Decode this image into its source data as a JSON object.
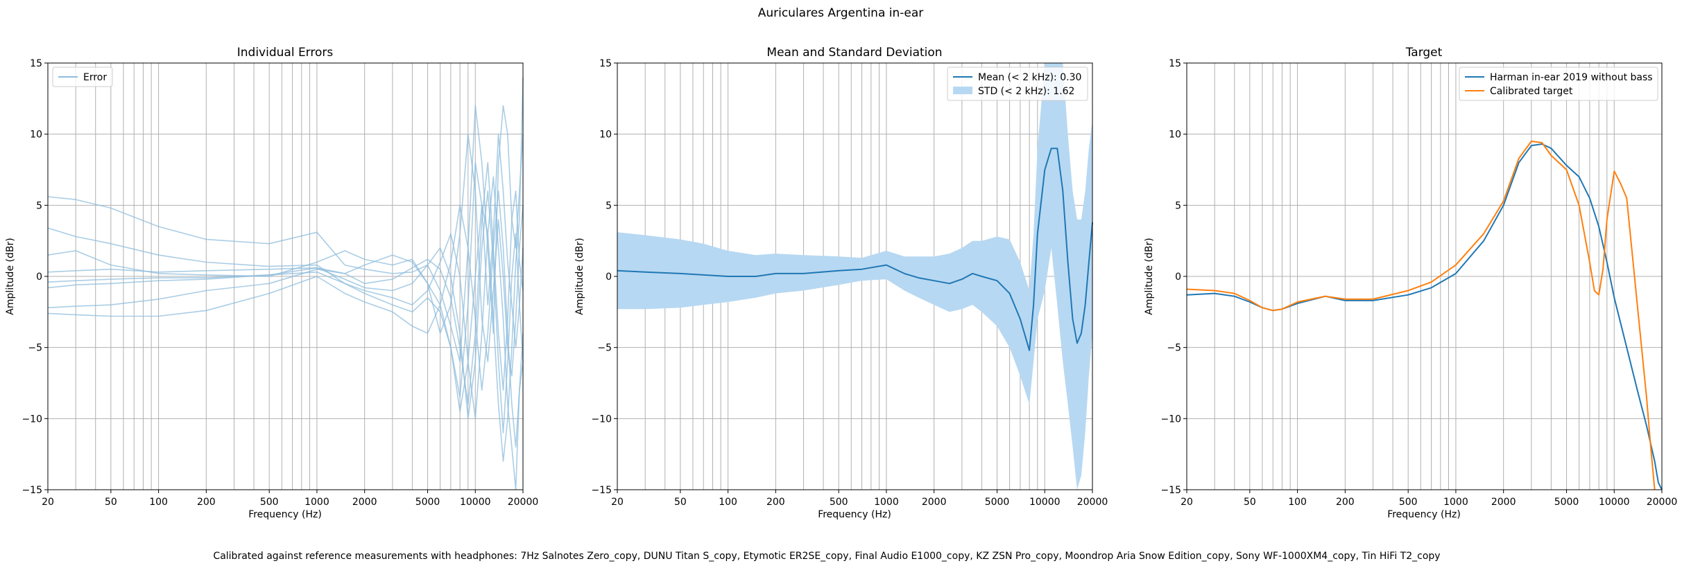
{
  "figure": {
    "suptitle": "Auriculares Argentina in-ear",
    "footer": "Calibrated against reference measurements with headphones: 7Hz Salnotes Zero_copy, DUNU Titan S_copy, Etymotic ER2SE_copy, Final Audio E1000_copy, KZ ZSN Pro_copy, Moondrop Aria Snow Edition_copy, Sony WF-1000XM4_copy, Tin HiFi T2_copy"
  },
  "chart_data": [
    {
      "type": "line",
      "title": "Individual Errors",
      "xlabel": "Frequency (Hz)",
      "ylabel": "Amplitude (dBr)",
      "xscale": "log",
      "xlim": [
        20,
        20000
      ],
      "ylim": [
        -15,
        15
      ],
      "xticks": [
        20,
        50,
        100,
        200,
        500,
        1000,
        2000,
        5000,
        10000,
        20000
      ],
      "yticks": [
        -15,
        -10,
        -5,
        0,
        5,
        10,
        15
      ],
      "grid": true,
      "legend": {
        "placement": "top-left",
        "entries": [
          "Error"
        ]
      },
      "line_color": "#8ebcdc",
      "series": [
        {
          "x": [
            20,
            30,
            50,
            100,
            200,
            500,
            1000,
            1500,
            2000,
            3000,
            4000,
            5000,
            6000,
            7000,
            8000,
            9000,
            10000,
            11000,
            12000,
            13000,
            14000,
            15000,
            16000,
            17000,
            18000,
            19000,
            20000
          ],
          "y": [
            5.6,
            5.4,
            4.8,
            3.5,
            2.6,
            2.3,
            3.1,
            0.8,
            0.5,
            0.2,
            0.3,
            0.8,
            -1.0,
            -3.5,
            -6.0,
            2.0,
            12.0,
            8.0,
            2.0,
            -4.0,
            8.0,
            12.0,
            10.0,
            4.0,
            2.0,
            6.0,
            10.0
          ]
        },
        {
          "x": [
            20,
            30,
            50,
            100,
            200,
            500,
            1000,
            1500,
            2000,
            3000,
            4000,
            5000,
            6000,
            7000,
            8000,
            9000,
            10000,
            11000,
            12000,
            13000,
            14000,
            15000,
            16000,
            17000,
            18000,
            19000,
            20000
          ],
          "y": [
            3.4,
            2.8,
            2.3,
            1.5,
            1.0,
            0.7,
            0.8,
            -0.5,
            -1.2,
            -2.0,
            -2.5,
            -1.5,
            -2.5,
            -5.0,
            -8.5,
            -2.0,
            8.0,
            5.0,
            -2.0,
            3.0,
            10.0,
            6.0,
            1.0,
            -2.0,
            -5.0,
            -2.0,
            2.0
          ]
        },
        {
          "x": [
            20,
            30,
            50,
            100,
            200,
            500,
            1000,
            1500,
            2000,
            3000,
            4000,
            5000,
            6000,
            7000,
            8000,
            9000,
            10000,
            11000,
            12000,
            13000,
            14000,
            15000,
            16000,
            17000,
            18000,
            19000,
            20000
          ],
          "y": [
            1.5,
            1.8,
            0.8,
            0.2,
            0.1,
            0.0,
            1.0,
            1.8,
            1.2,
            0.8,
            1.2,
            -0.5,
            -4.0,
            -2.0,
            3.0,
            10.0,
            6.0,
            -3.0,
            -6.0,
            -1.0,
            4.0,
            0.0,
            -5.0,
            -7.0,
            -3.0,
            2.0,
            5.0
          ]
        },
        {
          "x": [
            20,
            30,
            50,
            100,
            200,
            500,
            1000,
            1500,
            2000,
            3000,
            4000,
            5000,
            6000,
            7000,
            8000,
            9000,
            10000,
            11000,
            12000,
            13000,
            14000,
            15000,
            16000,
            17000,
            18000,
            19000,
            20000
          ],
          "y": [
            0.3,
            0.4,
            0.5,
            0.3,
            0.4,
            0.5,
            0.6,
            0.2,
            -0.5,
            -0.2,
            0.6,
            1.2,
            0.5,
            -1.5,
            -5.0,
            -9.0,
            -4.0,
            4.0,
            8.0,
            2.0,
            -4.0,
            -8.0,
            -3.0,
            4.0,
            6.0,
            1.0,
            -1.0
          ]
        },
        {
          "x": [
            20,
            30,
            50,
            100,
            200,
            500,
            1000,
            1500,
            2000,
            3000,
            4000,
            5000,
            6000,
            7000,
            8000,
            9000,
            10000,
            11000,
            12000,
            13000,
            14000,
            15000,
            16000,
            17000,
            18000,
            19000,
            20000
          ],
          "y": [
            -0.4,
            -0.3,
            -0.2,
            -0.1,
            -0.1,
            0.1,
            0.3,
            -0.5,
            -1.0,
            -1.5,
            -2.0,
            -1.0,
            1.0,
            3.0,
            0.0,
            -6.0,
            -10.0,
            -4.0,
            3.0,
            7.0,
            2.0,
            -3.0,
            -9.0,
            -12.0,
            -15.0,
            -8.0,
            -4.0
          ]
        },
        {
          "x": [
            20,
            30,
            50,
            100,
            200,
            500,
            1000,
            1500,
            2000,
            3000,
            4000,
            5000,
            6000,
            7000,
            8000,
            9000,
            10000,
            11000,
            12000,
            13000,
            14000,
            15000,
            16000,
            17000,
            18000,
            19000,
            20000
          ],
          "y": [
            -0.8,
            -0.6,
            -0.5,
            -0.3,
            -0.2,
            0.1,
            0.6,
            -0.2,
            -0.8,
            -1.0,
            -0.5,
            0.8,
            2.0,
            0.0,
            -4.0,
            -10.0,
            -6.0,
            2.0,
            6.0,
            1.0,
            -6.0,
            -11.0,
            -6.0,
            0.0,
            3.0,
            -2.0,
            -6.0
          ]
        },
        {
          "x": [
            20,
            30,
            50,
            100,
            200,
            500,
            1000,
            1500,
            2000,
            3000,
            4000,
            5000,
            6000,
            7000,
            8000,
            9000,
            10000,
            11000,
            12000,
            13000,
            14000,
            15000,
            16000,
            17000,
            18000,
            19000,
            20000
          ],
          "y": [
            -2.2,
            -2.1,
            -2.0,
            -1.6,
            -1.0,
            -0.5,
            0.5,
            0.2,
            0.8,
            1.5,
            1.0,
            -0.5,
            -2.0,
            -5.0,
            -9.5,
            -6.0,
            0.0,
            5.0,
            3.0,
            -3.0,
            -9.0,
            -13.0,
            -10.0,
            -5.0,
            1.0,
            4.0,
            14.0
          ]
        },
        {
          "x": [
            20,
            30,
            50,
            100,
            200,
            500,
            1000,
            1500,
            2000,
            3000,
            4000,
            5000,
            6000,
            7000,
            8000,
            9000,
            10000,
            11000,
            12000,
            13000,
            14000,
            15000,
            16000,
            17000,
            18000,
            19000,
            20000
          ],
          "y": [
            -2.6,
            -2.7,
            -2.8,
            -2.8,
            -2.4,
            -1.2,
            0.0,
            -1.2,
            -1.8,
            -2.5,
            -3.5,
            -4.0,
            -2.0,
            1.0,
            5.0,
            2.0,
            -3.0,
            -8.0,
            -4.0,
            2.0,
            6.0,
            2.0,
            -4.0,
            -9.0,
            -12.0,
            -8.0,
            -6.0
          ]
        }
      ]
    },
    {
      "type": "line",
      "title": "Mean and Standard Deviation",
      "xlabel": "Frequency (Hz)",
      "ylabel": "Amplitude (dBr)",
      "xscale": "log",
      "xlim": [
        20,
        20000
      ],
      "ylim": [
        -15,
        15
      ],
      "xticks": [
        20,
        50,
        100,
        200,
        500,
        1000,
        2000,
        5000,
        10000,
        20000
      ],
      "yticks": [
        -15,
        -10,
        -5,
        0,
        5,
        10,
        15
      ],
      "grid": true,
      "legend": {
        "placement": "top-right"
      },
      "series": [
        {
          "name": "Mean (< 2 kHz): 0.30",
          "color": "#1f77b4",
          "x": [
            20,
            30,
            50,
            70,
            100,
            150,
            200,
            300,
            500,
            700,
            1000,
            1300,
            1600,
            2000,
            2500,
            3000,
            3500,
            4000,
            5000,
            6000,
            7000,
            8000,
            8500,
            9000,
            10000,
            11000,
            12000,
            13000,
            14000,
            15000,
            16000,
            17000,
            18000,
            19000,
            20000
          ],
          "y": [
            0.4,
            0.3,
            0.2,
            0.1,
            0.0,
            0.0,
            0.2,
            0.2,
            0.4,
            0.5,
            0.8,
            0.2,
            -0.1,
            -0.3,
            -0.5,
            -0.2,
            0.2,
            0.0,
            -0.3,
            -1.2,
            -3.0,
            -5.2,
            -2.0,
            3.0,
            7.5,
            9.0,
            9.0,
            6.0,
            1.0,
            -3.0,
            -4.7,
            -4.0,
            -2.0,
            1.0,
            3.8
          ]
        },
        {
          "name": "STD (< 2 kHz): 1.62",
          "color": "#b7d8f2",
          "kind": "band",
          "x": [
            20,
            30,
            50,
            70,
            100,
            150,
            200,
            300,
            500,
            700,
            1000,
            1300,
            1600,
            2000,
            2500,
            3000,
            3500,
            4000,
            5000,
            6000,
            7000,
            8000,
            8500,
            9000,
            10000,
            11000,
            12000,
            13000,
            14000,
            15000,
            16000,
            17000,
            18000,
            19000,
            20000
          ],
          "lower": [
            -2.3,
            -2.3,
            -2.2,
            -2.0,
            -1.8,
            -1.5,
            -1.2,
            -1.0,
            -0.6,
            -0.3,
            -0.2,
            -1.0,
            -1.5,
            -2.0,
            -2.5,
            -2.3,
            -2.0,
            -2.5,
            -3.5,
            -5.0,
            -7.0,
            -9.0,
            -6.0,
            -3.0,
            -1.0,
            2.0,
            -2.0,
            -6.0,
            -9.0,
            -12.0,
            -15.0,
            -14.0,
            -11.0,
            -7.0,
            -4.0
          ],
          "upper": [
            3.1,
            2.9,
            2.6,
            2.3,
            1.8,
            1.5,
            1.6,
            1.5,
            1.4,
            1.3,
            1.8,
            1.4,
            1.4,
            1.4,
            1.6,
            2.0,
            2.5,
            2.5,
            2.8,
            2.6,
            1.0,
            -1.0,
            3.0,
            9.0,
            15.0,
            15.0,
            15.0,
            15.0,
            10.0,
            6.0,
            4.0,
            4.0,
            6.0,
            9.0,
            11.0
          ]
        }
      ]
    },
    {
      "type": "line",
      "title": "Target",
      "xlabel": "Frequency (Hz)",
      "ylabel": "Amplitude (dBr)",
      "xscale": "log",
      "xlim": [
        20,
        20000
      ],
      "ylim": [
        -15,
        15
      ],
      "xticks": [
        20,
        50,
        100,
        200,
        500,
        1000,
        2000,
        5000,
        10000,
        20000
      ],
      "yticks": [
        -15,
        -10,
        -5,
        0,
        5,
        10,
        15
      ],
      "grid": true,
      "legend": {
        "placement": "top-right"
      },
      "series": [
        {
          "name": "Harman in-ear 2019 without bass",
          "color": "#1f77b4",
          "x": [
            20,
            30,
            40,
            50,
            60,
            70,
            80,
            100,
            150,
            200,
            300,
            500,
            700,
            1000,
            1500,
            2000,
            2500,
            3000,
            3500,
            4000,
            5000,
            6000,
            7000,
            8000,
            9000,
            10000,
            12000,
            14000,
            16000,
            18000,
            19000,
            20000
          ],
          "y": [
            -1.3,
            -1.2,
            -1.4,
            -1.8,
            -2.2,
            -2.4,
            -2.3,
            -1.9,
            -1.4,
            -1.7,
            -1.7,
            -1.3,
            -0.8,
            0.2,
            2.5,
            5.0,
            8.0,
            9.2,
            9.3,
            9.0,
            7.8,
            7.0,
            5.5,
            3.5,
            1.0,
            -1.5,
            -5.0,
            -8.0,
            -10.5,
            -13.0,
            -14.5,
            -15.0
          ]
        },
        {
          "name": "Calibrated target",
          "color": "#ff7f0e",
          "x": [
            20,
            30,
            40,
            50,
            60,
            70,
            80,
            100,
            150,
            200,
            300,
            500,
            700,
            1000,
            1500,
            2000,
            2500,
            3000,
            3500,
            4000,
            5000,
            6000,
            7000,
            7500,
            8000,
            8500,
            9000,
            10000,
            11000,
            12000,
            14000,
            16000,
            17000,
            18000
          ],
          "y": [
            -0.9,
            -1.0,
            -1.2,
            -1.7,
            -2.2,
            -2.4,
            -2.3,
            -1.8,
            -1.4,
            -1.6,
            -1.6,
            -1.0,
            -0.4,
            0.8,
            3.0,
            5.3,
            8.3,
            9.5,
            9.4,
            8.5,
            7.5,
            5.0,
            1.0,
            -1.0,
            -1.3,
            0.5,
            4.0,
            7.4,
            6.5,
            5.5,
            -2.0,
            -8.5,
            -12.0,
            -15.0
          ]
        }
      ]
    }
  ]
}
